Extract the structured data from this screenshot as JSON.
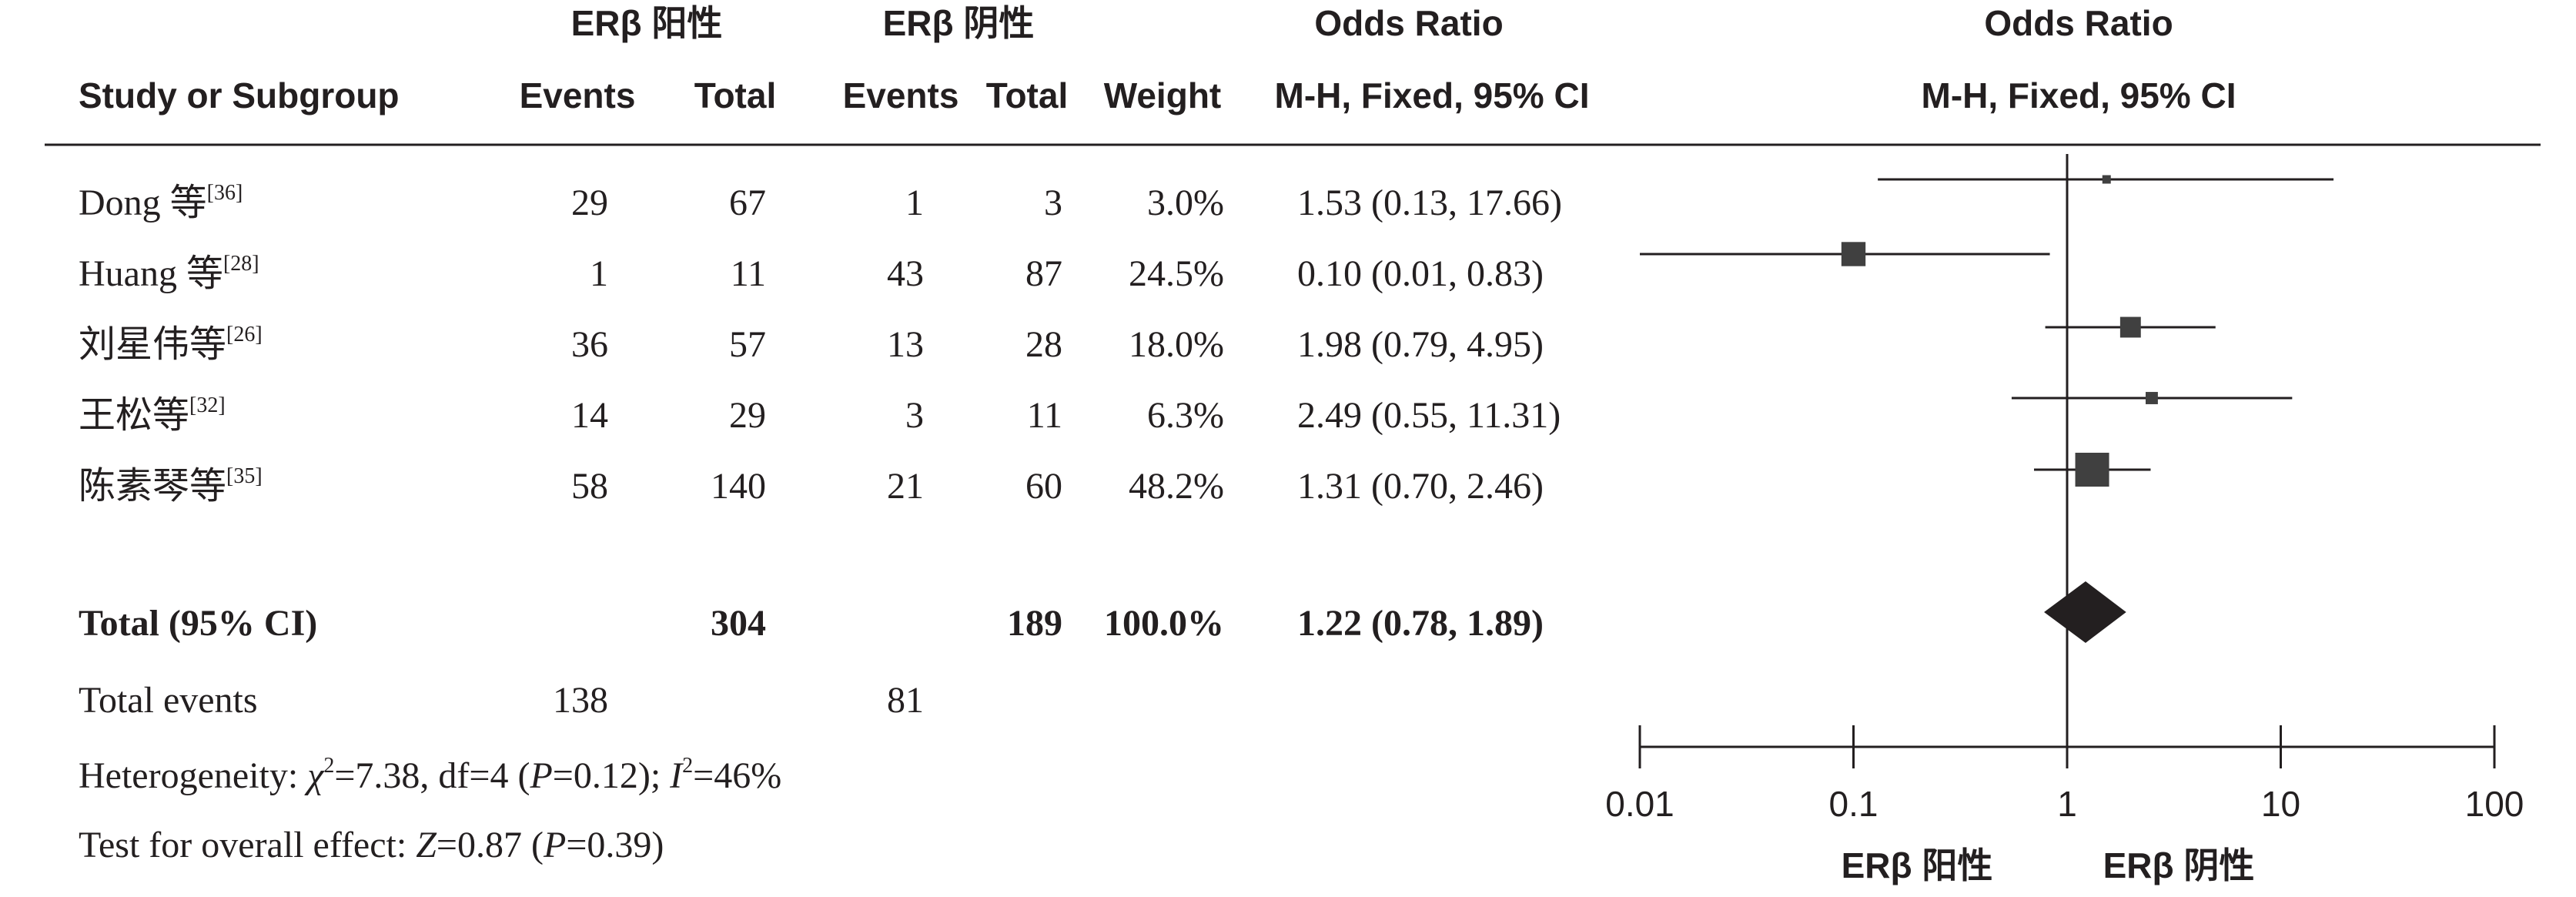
{
  "header": {
    "group1": "ERβ 阳性",
    "group2": "ERβ 阴性",
    "or_title": "Odds Ratio",
    "or_method": "M-H, Fixed, 95% CI",
    "plot_title": "Odds Ratio",
    "plot_method": "M-H, Fixed, 95% CI",
    "col_study": "Study or Subgroup",
    "col_events1": "Events",
    "col_total1": "Total",
    "col_events2": "Events",
    "col_total2": "Total",
    "col_weight": "Weight"
  },
  "studies": [
    {
      "name": "Dong 等",
      "ref": "[36]",
      "e1": "29",
      "t1": "67",
      "e2": "1",
      "t2": "3",
      "weight": "3.0%",
      "ci": "1.53 (0.13, 17.66)"
    },
    {
      "name": "Huang 等",
      "ref": "[28]",
      "e1": "1",
      "t1": "11",
      "e2": "43",
      "t2": "87",
      "weight": "24.5%",
      "ci": "0.10 (0.01, 0.83)"
    },
    {
      "name": "刘星伟等",
      "ref": "[26]",
      "e1": "36",
      "t1": "57",
      "e2": "13",
      "t2": "28",
      "weight": "18.0%",
      "ci": "1.98 (0.79, 4.95)"
    },
    {
      "name": "王松等",
      "ref": "[32]",
      "e1": "14",
      "t1": "29",
      "e2": "3",
      "t2": "11",
      "weight": "6.3%",
      "ci": "2.49 (0.55, 11.31)"
    },
    {
      "name": "陈素琴等",
      "ref": "[35]",
      "e1": "58",
      "t1": "140",
      "e2": "21",
      "t2": "60",
      "weight": "48.2%",
      "ci": "1.31 (0.70, 2.46)"
    }
  ],
  "total": {
    "label": "Total (95% CI)",
    "t1": "304",
    "t2": "189",
    "weight": "100.0%",
    "ci": "1.22 (0.78, 1.89)"
  },
  "total_events": {
    "label": "Total events",
    "e1": "138",
    "e2": "81"
  },
  "heterogeneity": {
    "prefix": "Heterogeneity: ",
    "chi_sym": "χ",
    "chi_sup": "2",
    "mid": "=7.38, df=4 (",
    "p_sym": "P",
    "p_val": "=0.12); ",
    "i_sym": "I",
    "i_sup": "2",
    "i_val": "=46%"
  },
  "overall": {
    "prefix": "Test for overall effect: ",
    "z_sym": "Z",
    "z_val": "=0.87 (",
    "p_sym": "P",
    "p_val": "=0.39)"
  },
  "chart_data": {
    "type": "forest",
    "title": "Odds Ratio",
    "subtitle": "M-H, Fixed, 95% CI",
    "x_scale": "log",
    "xlim": [
      0.01,
      100
    ],
    "x_ticks": [
      0.01,
      0.1,
      1,
      10,
      100
    ],
    "x_tick_labels": [
      "0.01",
      "0.1",
      "1",
      "10",
      "100"
    ],
    "reference_line": 1,
    "favours_left": "ERβ 阳性",
    "favours_right": "ERβ 阴性",
    "points": [
      {
        "label": "Dong 等",
        "or": 1.53,
        "lower": 0.13,
        "upper": 17.66,
        "weight": 3.0
      },
      {
        "label": "Huang 等",
        "or": 0.1,
        "lower": 0.01,
        "upper": 0.83,
        "weight": 24.5
      },
      {
        "label": "刘星伟等",
        "or": 1.98,
        "lower": 0.79,
        "upper": 4.95,
        "weight": 18.0
      },
      {
        "label": "王松等",
        "or": 2.49,
        "lower": 0.55,
        "upper": 11.31,
        "weight": 6.3
      },
      {
        "label": "陈素琴等",
        "or": 1.31,
        "lower": 0.7,
        "upper": 2.46,
        "weight": 48.2
      }
    ],
    "pooled": {
      "or": 1.22,
      "lower": 0.78,
      "upper": 1.89
    },
    "colors": {
      "marker": "#404040",
      "line": "#231f20",
      "diamond": "#231f20"
    }
  }
}
